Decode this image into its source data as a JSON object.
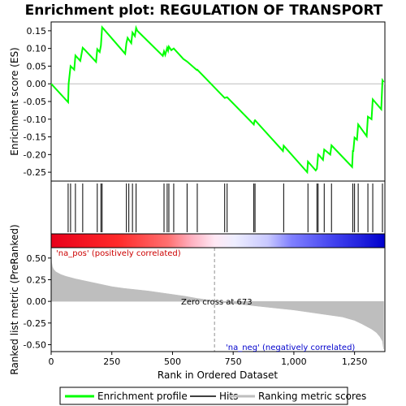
{
  "chart_data": {
    "type": "line",
    "title": "Enrichment plot: REGULATION OF TRANSPORT",
    "colors": {
      "profile": "#00ff00",
      "hits": "#000000",
      "metric": "#bebebe",
      "pos_band": "#ff0000",
      "neg_band": "#0000ff"
    },
    "panels": {
      "enrichment": {
        "ylabel": "Enrichment score (ES)",
        "ylim": [
          -0.275,
          0.175
        ],
        "yticks": [
          "0.15",
          "0.10",
          "0.05",
          "0.00",
          "-0.05",
          "-0.10",
          "-0.15",
          "-0.20",
          "-0.25"
        ],
        "ytick_values": [
          0.15,
          0.1,
          0.05,
          0.0,
          -0.05,
          -0.1,
          -0.15,
          -0.2,
          -0.25
        ],
        "profile_x": [
          0,
          70,
          72,
          80,
          95,
          100,
          120,
          130,
          140,
          185,
          190,
          200,
          205,
          210,
          305,
          310,
          315,
          320,
          330,
          335,
          345,
          350,
          355,
          460,
          465,
          470,
          478,
          482,
          485,
          495,
          505,
          545,
          560,
          600,
          602,
          715,
          725,
          835,
          838,
          840,
          955,
          958,
          1055,
          1058,
          1090,
          1095,
          1100,
          1105,
          1120,
          1125,
          1150,
          1155,
          1240,
          1243,
          1245,
          1250,
          1260,
          1265,
          1300,
          1305,
          1320,
          1325,
          1360,
          1365,
          1370
        ],
        "profile_y": [
          0.0,
          -0.052,
          0.0,
          0.05,
          0.04,
          0.08,
          0.065,
          0.102,
          0.095,
          0.062,
          0.098,
          0.09,
          0.108,
          0.16,
          0.085,
          0.115,
          0.13,
          0.125,
          0.115,
          0.145,
          0.135,
          0.158,
          0.15,
          0.079,
          0.092,
          0.082,
          0.102,
          0.094,
          0.105,
          0.095,
          0.1,
          0.07,
          0.063,
          0.039,
          0.04,
          -0.04,
          -0.038,
          -0.115,
          -0.105,
          -0.103,
          -0.19,
          -0.175,
          -0.25,
          -0.22,
          -0.245,
          -0.24,
          -0.2,
          -0.203,
          -0.215,
          -0.186,
          -0.2,
          -0.174,
          -0.235,
          -0.19,
          -0.19,
          -0.152,
          -0.158,
          -0.115,
          -0.148,
          -0.093,
          -0.1,
          -0.044,
          -0.072,
          0.01,
          0.005
        ]
      },
      "hits": {
        "positions": [
          70,
          80,
          100,
          130,
          190,
          205,
          210,
          310,
          320,
          335,
          350,
          465,
          478,
          485,
          505,
          560,
          602,
          715,
          725,
          835,
          840,
          958,
          1058,
          1095,
          1100,
          1125,
          1155,
          1243,
          1250,
          1265,
          1305,
          1325,
          1365
        ]
      },
      "metric": {
        "ylabel": "Ranked list metric (PreRanked)",
        "xlabel": "Rank in Ordered Dataset",
        "ylim": [
          -0.58,
          0.62
        ],
        "yticks": [
          "0.50",
          "0.25",
          "0.00",
          "-0.25",
          "-0.50"
        ],
        "ytick_values": [
          0.5,
          0.25,
          0.0,
          -0.25,
          -0.5
        ],
        "xticks": [
          "0",
          "250",
          "500",
          "750",
          "1,000",
          "1,250"
        ],
        "xtick_values": [
          0,
          250,
          500,
          750,
          1000,
          1250
        ],
        "xlim": [
          0,
          1375
        ],
        "curve_x": [
          0,
          2,
          5,
          10,
          20,
          40,
          60,
          100,
          150,
          200,
          250,
          300,
          350,
          400,
          450,
          500,
          550,
          600,
          650,
          673,
          700,
          750,
          800,
          850,
          900,
          950,
          1000,
          1050,
          1100,
          1150,
          1200,
          1250,
          1280,
          1300,
          1320,
          1340,
          1355,
          1365,
          1368,
          1370
        ],
        "curve_y": [
          0.6,
          0.45,
          0.4,
          0.37,
          0.34,
          0.31,
          0.29,
          0.26,
          0.23,
          0.2,
          0.17,
          0.15,
          0.135,
          0.12,
          0.1,
          0.08,
          0.06,
          0.035,
          0.015,
          0.0,
          -0.01,
          -0.025,
          -0.04,
          -0.055,
          -0.07,
          -0.085,
          -0.1,
          -0.12,
          -0.14,
          -0.16,
          -0.18,
          -0.22,
          -0.26,
          -0.29,
          -0.32,
          -0.36,
          -0.41,
          -0.46,
          -0.52,
          -0.55
        ],
        "zero_cross": 673,
        "zero_cross_label": "Zero cross at 673",
        "pos_label": "'na_pos' (positively correlated)",
        "neg_label": "'na_neg' (negatively correlated)"
      }
    },
    "legend": {
      "placement": "bottom",
      "entries": [
        {
          "label": "Enrichment profile",
          "color": "#00ff00"
        },
        {
          "label": "Hits",
          "color": "#000000"
        },
        {
          "label": "Ranking metric scores",
          "color": "#bebebe"
        }
      ]
    }
  }
}
